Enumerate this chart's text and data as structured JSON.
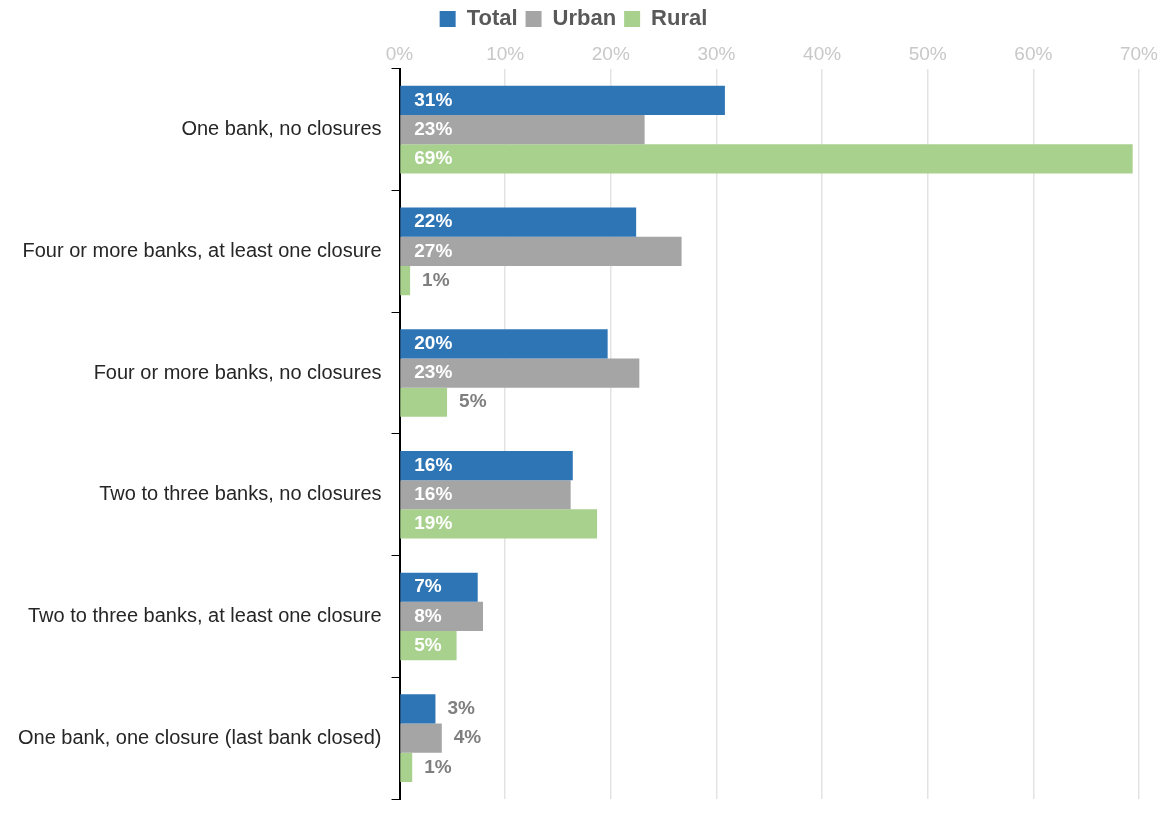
{
  "chart_data": {
    "type": "bar",
    "orientation": "horizontal",
    "categories": [
      "One bank, no closures",
      "Four or more banks, at least one closure",
      "Four or more banks, no closures",
      "Two to three banks, no closures",
      "Two to three banks, at least one closure",
      "One bank, one closure (last bank closed)"
    ],
    "series": [
      {
        "name": "Total",
        "color": "#2e75b6",
        "values": [
          30.8,
          22.4,
          19.7,
          16.4,
          7.4,
          3.4
        ],
        "value_labels": [
          "31%",
          "22%",
          "20%",
          "16%",
          "7%",
          "3%"
        ]
      },
      {
        "name": "Urban",
        "color": "#a5a5a5",
        "values": [
          23.2,
          26.7,
          22.7,
          16.2,
          7.9,
          4.0
        ],
        "value_labels": [
          "23%",
          "27%",
          "23%",
          "16%",
          "8%",
          "4%"
        ]
      },
      {
        "name": "Rural",
        "color": "#a9d18e",
        "values": [
          69.4,
          1.0,
          4.5,
          18.7,
          5.4,
          1.2
        ],
        "value_labels": [
          "69%",
          "1%",
          "5%",
          "19%",
          "5%",
          "1%"
        ]
      }
    ],
    "xlim": [
      0,
      70
    ],
    "xticks": [
      {
        "value": 0,
        "label": "0%"
      },
      {
        "value": 10,
        "label": "10%"
      },
      {
        "value": 20,
        "label": "20%"
      },
      {
        "value": 30,
        "label": "30%"
      },
      {
        "value": 40,
        "label": "40%"
      },
      {
        "value": 50,
        "label": "50%"
      },
      {
        "value": 60,
        "label": "60%"
      },
      {
        "value": 70,
        "label": "70%"
      }
    ],
    "grid": "x",
    "legend": "top"
  }
}
